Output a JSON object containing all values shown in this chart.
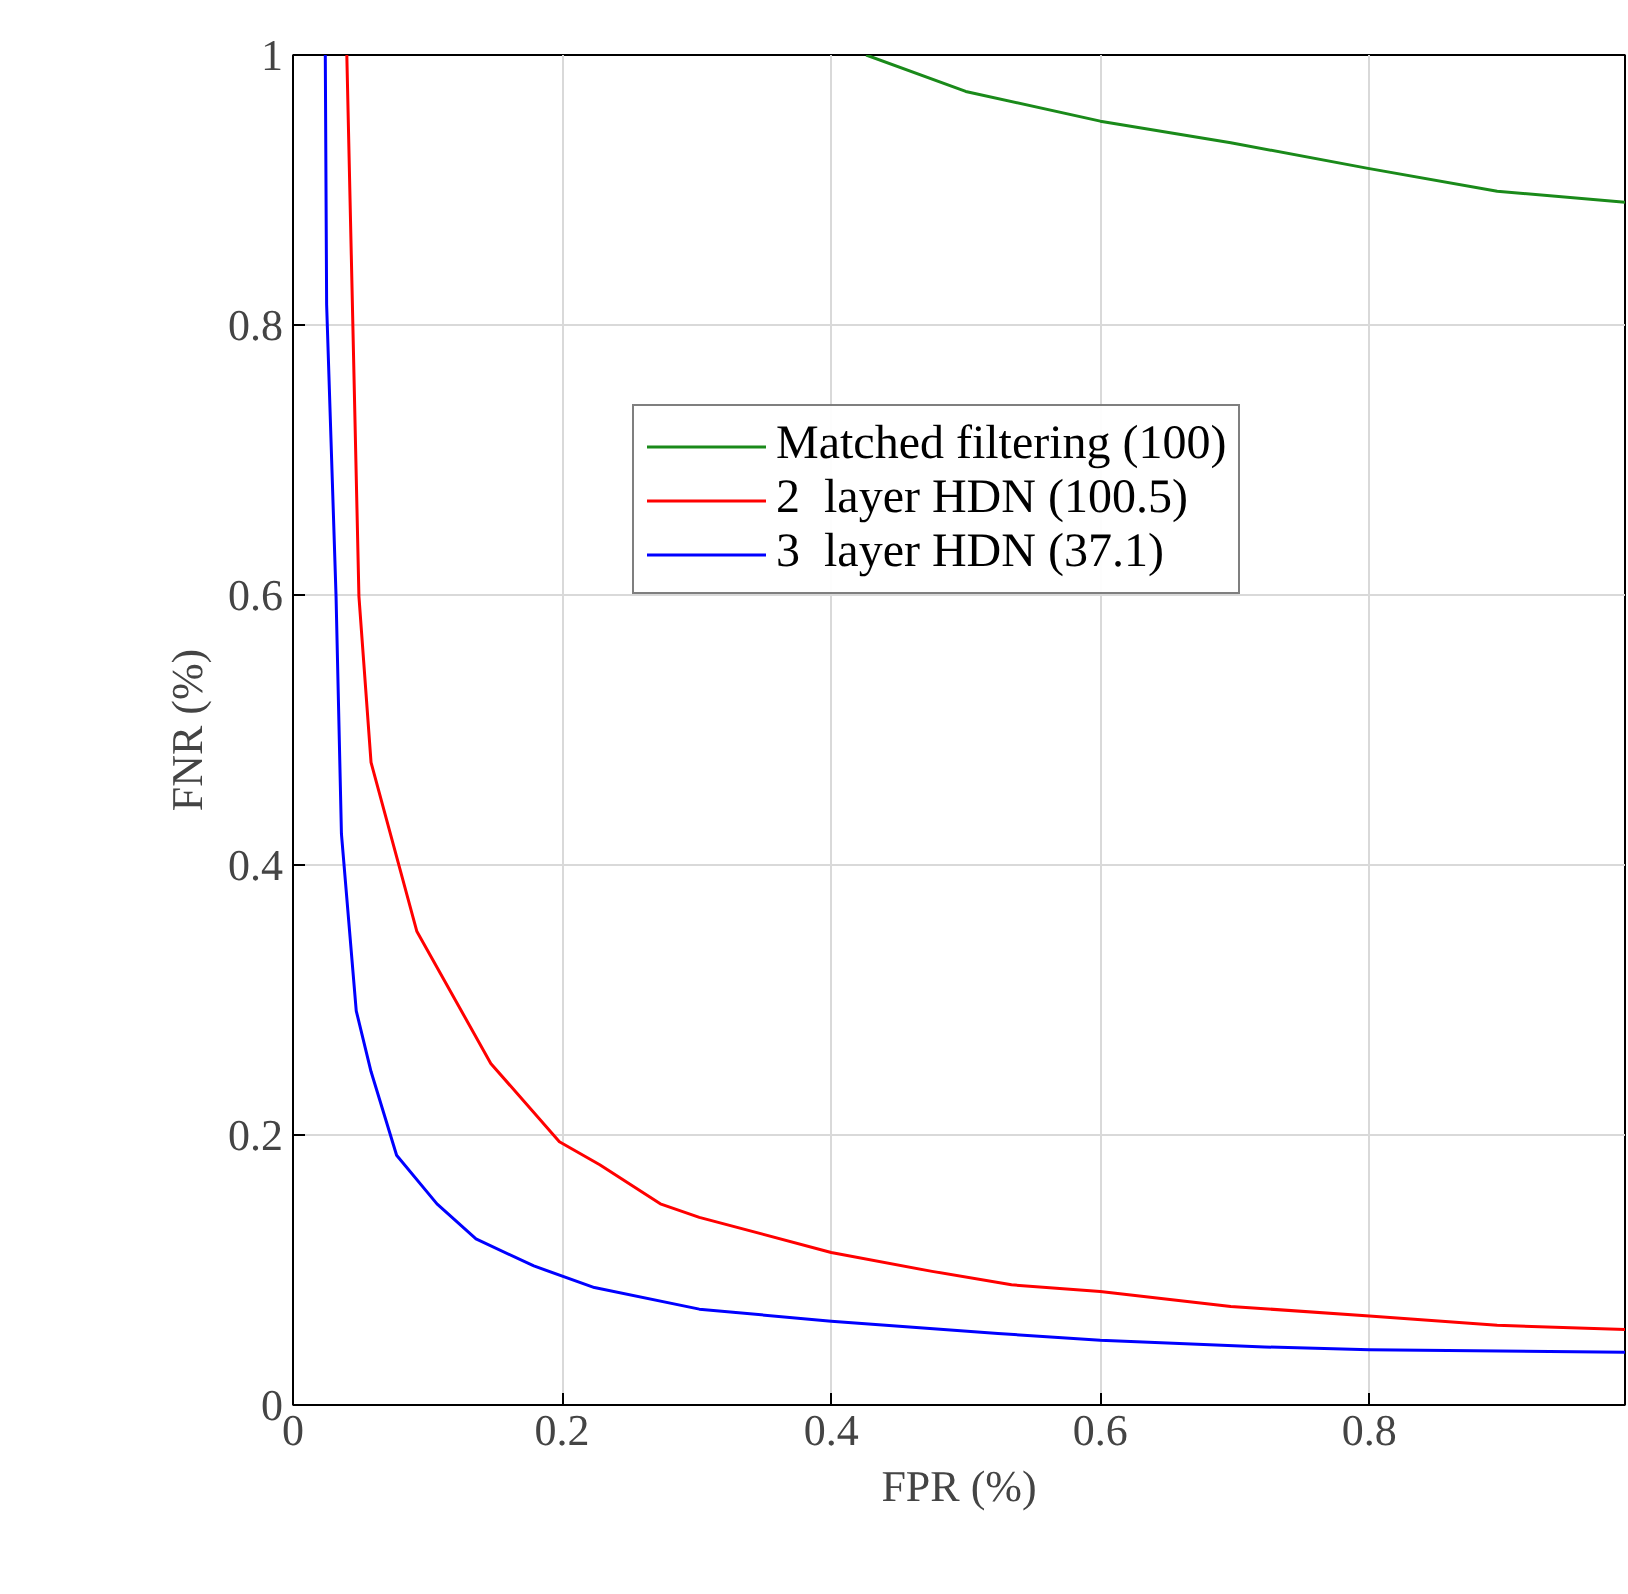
{
  "chart_data": {
    "type": "line",
    "xlabel": "FPR (%)",
    "ylabel": "FNR (%)",
    "xlim": [
      0,
      0.99
    ],
    "ylim": [
      0,
      1
    ],
    "xticks": [
      0,
      0.2,
      0.4,
      0.6,
      0.8
    ],
    "yticks": [
      0,
      0.2,
      0.4,
      0.6,
      0.8,
      1
    ],
    "grid": true,
    "legend": "top right",
    "line_style": "solid",
    "series": [
      {
        "name": "Matched filtering (100)",
        "color": "#1a8a1a",
        "x": [
          0.426,
          0.5,
          0.6,
          0.697,
          0.799,
          0.895,
          0.99
        ],
        "values": [
          1.0,
          0.973,
          0.951,
          0.935,
          0.916,
          0.899,
          0.891
        ]
      },
      {
        "name": "2  layer HDN (100.5)",
        "color": "#ff0000",
        "x": [
          0.04,
          0.049,
          0.058,
          0.092,
          0.147,
          0.198,
          0.228,
          0.273,
          0.302,
          0.4,
          0.475,
          0.534,
          0.6,
          0.697,
          0.8,
          0.895,
          0.99
        ],
        "values": [
          1.0,
          0.599,
          0.476,
          0.351,
          0.253,
          0.195,
          0.178,
          0.149,
          0.139,
          0.113,
          0.099,
          0.089,
          0.084,
          0.073,
          0.066,
          0.059,
          0.056
        ]
      },
      {
        "name": "3  layer HDN (37.1)",
        "color": "#0000ff",
        "x": [
          0.024,
          0.025,
          0.032,
          0.036,
          0.047,
          0.058,
          0.077,
          0.107,
          0.136,
          0.179,
          0.224,
          0.302,
          0.4,
          0.524,
          0.6,
          0.722,
          0.8,
          0.99
        ],
        "values": [
          1.0,
          0.815,
          0.599,
          0.423,
          0.292,
          0.247,
          0.185,
          0.149,
          0.123,
          0.103,
          0.087,
          0.071,
          0.062,
          0.053,
          0.048,
          0.043,
          0.041,
          0.039
        ]
      }
    ]
  }
}
